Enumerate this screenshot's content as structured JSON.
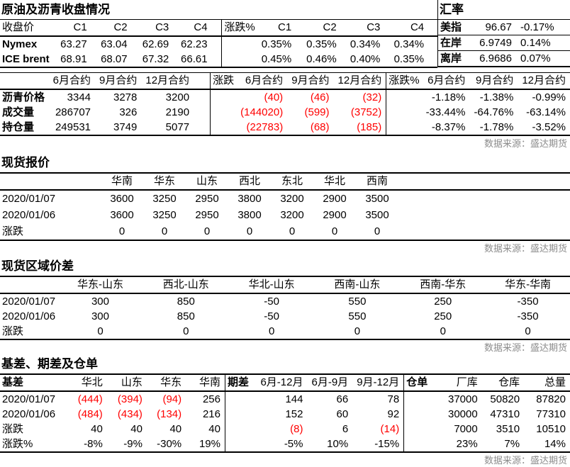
{
  "source_label": "数据来源：盛达期货",
  "colors": {
    "negative_value": "#ff0000",
    "source_text": "#8c8c8c",
    "text": "#000000",
    "border": "#000000"
  },
  "section1": {
    "title": "原油及沥青收盘情况",
    "close": {
      "corner": "收盘价",
      "cols": [
        "C1",
        "C2",
        "C3",
        "C4"
      ],
      "rows": [
        {
          "label": "Nymex",
          "values": [
            "63.27",
            "63.04",
            "62.69",
            "62.23"
          ]
        },
        {
          "label": "ICE brent",
          "values": [
            "68.91",
            "68.07",
            "67.32",
            "66.61"
          ]
        }
      ]
    },
    "pct": {
      "corner": "涨跌%",
      "cols": [
        "C1",
        "C2",
        "C3",
        "C4"
      ],
      "rows": [
        {
          "label": "",
          "values": [
            "0.35%",
            "0.35%",
            "0.34%",
            "0.34%"
          ]
        },
        {
          "label": "",
          "values": [
            "0.45%",
            "0.46%",
            "0.40%",
            "0.35%"
          ]
        }
      ]
    }
  },
  "fx": {
    "title": "汇率",
    "rows": [
      {
        "label": "美指",
        "value": "96.67",
        "change": "-0.17%"
      },
      {
        "label": "在岸",
        "value": "6.9749",
        "change": "0.14%"
      },
      {
        "label": "离岸",
        "value": "6.9686",
        "change": "0.07%"
      }
    ]
  },
  "section2": {
    "price": {
      "corner": "",
      "cols": [
        "6月合约",
        "9月合约",
        "12月合约"
      ],
      "rows": [
        {
          "label": "沥青价格",
          "values": [
            "3344",
            "3278",
            "3200"
          ]
        },
        {
          "label": "成交量",
          "values": [
            "286707",
            "326",
            "2190"
          ]
        },
        {
          "label": "持仓量",
          "values": [
            "249531",
            "3749",
            "5077"
          ]
        }
      ]
    },
    "chg": {
      "corner": "涨跌",
      "cols": [
        "6月合约",
        "9月合约",
        "12月合约"
      ],
      "rows": [
        {
          "label": "",
          "values": [
            "(40)",
            "(46)",
            "(32)"
          ]
        },
        {
          "label": "",
          "values": [
            "(144020)",
            "(599)",
            "(3752)"
          ]
        },
        {
          "label": "",
          "values": [
            "(22783)",
            "(68)",
            "(185)"
          ]
        }
      ]
    },
    "pct": {
      "corner": "涨跌%",
      "cols": [
        "6月合约",
        "9月合约",
        "12月合约"
      ],
      "rows": [
        {
          "label": "",
          "values": [
            "-1.18%",
            "-1.38%",
            "-0.99%"
          ]
        },
        {
          "label": "",
          "values": [
            "-33.44%",
            "-64.76%",
            "-63.14%"
          ]
        },
        {
          "label": "",
          "values": [
            "-8.37%",
            "-1.78%",
            "-3.52%"
          ]
        }
      ]
    }
  },
  "spot": {
    "title": "现货报价",
    "corner": "",
    "cols": [
      "华南",
      "华东",
      "山东",
      "西北",
      "东北",
      "华北",
      "西南"
    ],
    "rows": [
      {
        "label": "2020/01/07",
        "values": [
          "3600",
          "3250",
          "2950",
          "3800",
          "3200",
          "2900",
          "3500"
        ]
      },
      {
        "label": "2020/01/06",
        "values": [
          "3600",
          "3250",
          "2950",
          "3800",
          "3200",
          "2900",
          "3500"
        ]
      },
      {
        "label": "涨跌",
        "values": [
          "0",
          "0",
          "0",
          "0",
          "0",
          "0",
          "0"
        ]
      }
    ]
  },
  "regional": {
    "title": "现货区域价差",
    "corner": "",
    "cols": [
      "华东-山东",
      "西北-山东",
      "华北-山东",
      "西南-山东",
      "西南-华东",
      "华东-华南"
    ],
    "rows": [
      {
        "label": "2020/01/07",
        "values": [
          "300",
          "850",
          "-50",
          "550",
          "250",
          "-350"
        ]
      },
      {
        "label": "2020/01/06",
        "values": [
          "300",
          "850",
          "-50",
          "550",
          "250",
          "-350"
        ]
      },
      {
        "label": "涨跌",
        "values": [
          "0",
          "0",
          "0",
          "0",
          "0",
          "0"
        ]
      }
    ]
  },
  "basis_section": {
    "title": "基差、期差及仓单",
    "basis": {
      "corner": "基差",
      "cols": [
        "华北",
        "山东",
        "华东",
        "华南"
      ],
      "rows": [
        {
          "label": "2020/01/07",
          "values": [
            "(444)",
            "(394)",
            "(94)",
            "256"
          ]
        },
        {
          "label": "2020/01/06",
          "values": [
            "(484)",
            "(434)",
            "(134)",
            "216"
          ]
        },
        {
          "label": "涨跌",
          "values": [
            "40",
            "40",
            "40",
            "40"
          ]
        },
        {
          "label": "涨跌%",
          "values": [
            "-8%",
            "-9%",
            "-30%",
            "19%"
          ]
        }
      ]
    },
    "spread": {
      "corner": "期差",
      "cols": [
        "6月-12月",
        "6月-9月",
        "9月-12月"
      ],
      "rows": [
        {
          "label": "",
          "values": [
            "144",
            "66",
            "78"
          ]
        },
        {
          "label": "",
          "values": [
            "152",
            "60",
            "92"
          ]
        },
        {
          "label": "",
          "values": [
            "(8)",
            "6",
            "(14)"
          ]
        },
        {
          "label": "",
          "values": [
            "-5%",
            "10%",
            "-15%"
          ]
        }
      ]
    },
    "receipts": {
      "corner": "仓单",
      "cols": [
        "厂库",
        "仓库",
        "总量"
      ],
      "rows": [
        {
          "label": "",
          "values": [
            "37000",
            "50820",
            "87820"
          ]
        },
        {
          "label": "",
          "values": [
            "30000",
            "47310",
            "77310"
          ]
        },
        {
          "label": "",
          "values": [
            "7000",
            "3510",
            "10510"
          ]
        },
        {
          "label": "",
          "values": [
            "23%",
            "7%",
            "14%"
          ]
        }
      ]
    }
  }
}
